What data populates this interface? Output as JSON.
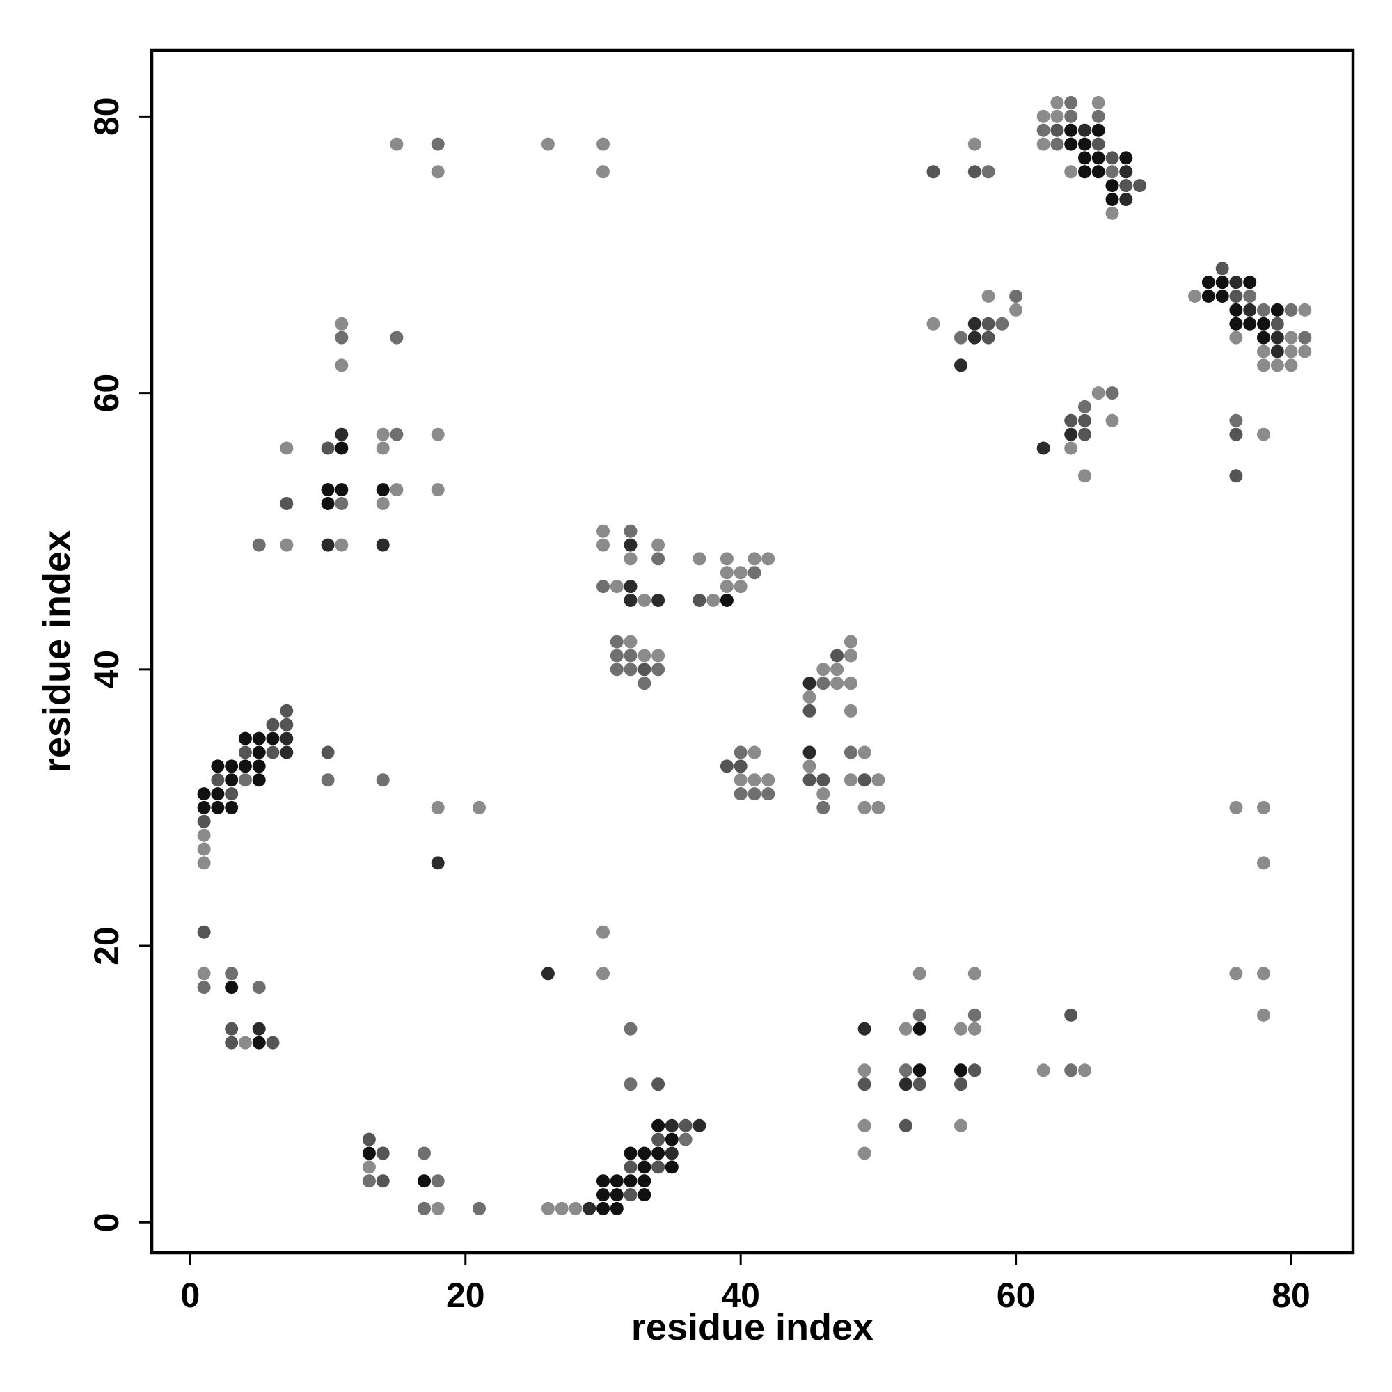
{
  "chart_data": {
    "type": "scatter",
    "xlabel": "residue index",
    "ylabel": "residue index",
    "xlim": [
      -2.8,
      84.5
    ],
    "ylim": [
      -2.2,
      84.8
    ],
    "xticks": [
      0,
      20,
      40,
      60,
      80
    ],
    "yticks": [
      0,
      20,
      40,
      60,
      80
    ],
    "grid": false,
    "legend": "none",
    "colors": {
      "l1": "#111111",
      "l2": "#2b2b2b",
      "l3": "#555555",
      "l4": "#6f6f6f",
      "l5": "#8b8b8b"
    },
    "points": [
      [
        1,
        31,
        "l1"
      ],
      [
        1,
        30,
        "l1"
      ],
      [
        1,
        29,
        "l3"
      ],
      [
        1,
        28,
        "l5"
      ],
      [
        1,
        27,
        "l5"
      ],
      [
        1,
        26,
        "l5"
      ],
      [
        2,
        33,
        "l1"
      ],
      [
        2,
        32,
        "l3"
      ],
      [
        2,
        31,
        "l1"
      ],
      [
        2,
        30,
        "l1"
      ],
      [
        3,
        33,
        "l1"
      ],
      [
        3,
        32,
        "l1"
      ],
      [
        3,
        31,
        "l3"
      ],
      [
        3,
        30,
        "l1"
      ],
      [
        4,
        35,
        "l1"
      ],
      [
        4,
        34,
        "l3"
      ],
      [
        4,
        33,
        "l1"
      ],
      [
        4,
        32,
        "l4"
      ],
      [
        5,
        35,
        "l1"
      ],
      [
        5,
        34,
        "l1"
      ],
      [
        5,
        33,
        "l1"
      ],
      [
        5,
        32,
        "l1"
      ],
      [
        6,
        36,
        "l3"
      ],
      [
        6,
        35,
        "l1"
      ],
      [
        6,
        34,
        "l3"
      ],
      [
        7,
        37,
        "l3"
      ],
      [
        7,
        36,
        "l3"
      ],
      [
        7,
        35,
        "l2"
      ],
      [
        7,
        34,
        "l2"
      ],
      [
        10,
        34,
        "l3"
      ],
      [
        10,
        32,
        "l4"
      ],
      [
        14,
        32,
        "l4"
      ],
      [
        18,
        30,
        "l5"
      ],
      [
        21,
        30,
        "l5"
      ],
      [
        18,
        26,
        "l2"
      ],
      [
        1,
        21,
        "l3"
      ],
      [
        1,
        18,
        "l5"
      ],
      [
        1,
        17,
        "l4"
      ],
      [
        3,
        18,
        "l4"
      ],
      [
        3,
        17,
        "l1"
      ],
      [
        5,
        17,
        "l4"
      ],
      [
        3,
        14,
        "l3"
      ],
      [
        3,
        13,
        "l3"
      ],
      [
        4,
        13,
        "l5"
      ],
      [
        5,
        14,
        "l2"
      ],
      [
        5,
        13,
        "l1"
      ],
      [
        6,
        13,
        "l3"
      ],
      [
        13,
        6,
        "l3"
      ],
      [
        13,
        5,
        "l1"
      ],
      [
        13,
        4,
        "l5"
      ],
      [
        13,
        3,
        "l4"
      ],
      [
        14,
        5,
        "l3"
      ],
      [
        14,
        3,
        "l3"
      ],
      [
        17,
        5,
        "l4"
      ],
      [
        17,
        3,
        "l1"
      ],
      [
        17,
        1,
        "l4"
      ],
      [
        18,
        3,
        "l4"
      ],
      [
        18,
        1,
        "l5"
      ],
      [
        21,
        1,
        "l4"
      ],
      [
        26,
        1,
        "l5"
      ],
      [
        27,
        1,
        "l5"
      ],
      [
        28,
        1,
        "l5"
      ],
      [
        29,
        1,
        "l2"
      ],
      [
        30,
        3,
        "l1"
      ],
      [
        30,
        2,
        "l1"
      ],
      [
        30,
        1,
        "l1"
      ],
      [
        31,
        3,
        "l1"
      ],
      [
        31,
        2,
        "l1"
      ],
      [
        31,
        1,
        "l1"
      ],
      [
        32,
        5,
        "l1"
      ],
      [
        32,
        4,
        "l3"
      ],
      [
        32,
        3,
        "l1"
      ],
      [
        32,
        2,
        "l3"
      ],
      [
        33,
        5,
        "l1"
      ],
      [
        33,
        4,
        "l1"
      ],
      [
        33,
        3,
        "l1"
      ],
      [
        33,
        2,
        "l1"
      ],
      [
        34,
        7,
        "l1"
      ],
      [
        34,
        6,
        "l3"
      ],
      [
        34,
        5,
        "l1"
      ],
      [
        34,
        4,
        "l3"
      ],
      [
        35,
        7,
        "l2"
      ],
      [
        35,
        6,
        "l1"
      ],
      [
        35,
        5,
        "l2"
      ],
      [
        35,
        4,
        "l1"
      ],
      [
        36,
        7,
        "l3"
      ],
      [
        36,
        6,
        "l4"
      ],
      [
        37,
        7,
        "l2"
      ],
      [
        32,
        14,
        "l4"
      ],
      [
        32,
        10,
        "l4"
      ],
      [
        34,
        10,
        "l3"
      ],
      [
        26,
        18,
        "l2"
      ],
      [
        30,
        21,
        "l5"
      ],
      [
        30,
        18,
        "l5"
      ],
      [
        15,
        78,
        "l5"
      ],
      [
        18,
        78,
        "l4"
      ],
      [
        18,
        76,
        "l5"
      ],
      [
        26,
        78,
        "l5"
      ],
      [
        30,
        78,
        "l5"
      ],
      [
        30,
        76,
        "l5"
      ],
      [
        11,
        65,
        "l5"
      ],
      [
        11,
        64,
        "l4"
      ],
      [
        11,
        62,
        "l5"
      ],
      [
        15,
        64,
        "l4"
      ],
      [
        7,
        56,
        "l5"
      ],
      [
        7,
        52,
        "l3"
      ],
      [
        7,
        49,
        "l5"
      ],
      [
        5,
        49,
        "l4"
      ],
      [
        10,
        56,
        "l3"
      ],
      [
        10,
        53,
        "l1"
      ],
      [
        10,
        52,
        "l1"
      ],
      [
        10,
        49,
        "l2"
      ],
      [
        11,
        57,
        "l2"
      ],
      [
        11,
        56,
        "l1"
      ],
      [
        11,
        53,
        "l1"
      ],
      [
        11,
        52,
        "l4"
      ],
      [
        11,
        49,
        "l5"
      ],
      [
        14,
        57,
        "l5"
      ],
      [
        14,
        56,
        "l5"
      ],
      [
        14,
        53,
        "l1"
      ],
      [
        14,
        52,
        "l5"
      ],
      [
        14,
        49,
        "l2"
      ],
      [
        15,
        57,
        "l4"
      ],
      [
        15,
        53,
        "l5"
      ],
      [
        18,
        57,
        "l5"
      ],
      [
        18,
        53,
        "l5"
      ],
      [
        30,
        50,
        "l5"
      ],
      [
        30,
        49,
        "l5"
      ],
      [
        30,
        46,
        "l4"
      ],
      [
        31,
        46,
        "l5"
      ],
      [
        32,
        50,
        "l4"
      ],
      [
        32,
        49,
        "l2"
      ],
      [
        32,
        48,
        "l5"
      ],
      [
        32,
        46,
        "l2"
      ],
      [
        32,
        45,
        "l2"
      ],
      [
        33,
        45,
        "l5"
      ],
      [
        34,
        49,
        "l5"
      ],
      [
        34,
        48,
        "l4"
      ],
      [
        34,
        45,
        "l2"
      ],
      [
        31,
        42,
        "l4"
      ],
      [
        31,
        41,
        "l4"
      ],
      [
        31,
        40,
        "l4"
      ],
      [
        32,
        42,
        "l5"
      ],
      [
        32,
        41,
        "l4"
      ],
      [
        32,
        40,
        "l4"
      ],
      [
        33,
        41,
        "l5"
      ],
      [
        33,
        40,
        "l3"
      ],
      [
        33,
        39,
        "l4"
      ],
      [
        34,
        41,
        "l5"
      ],
      [
        34,
        40,
        "l4"
      ],
      [
        37,
        48,
        "l5"
      ],
      [
        37,
        45,
        "l3"
      ],
      [
        38,
        45,
        "l5"
      ],
      [
        39,
        48,
        "l5"
      ],
      [
        39,
        47,
        "l5"
      ],
      [
        39,
        46,
        "l5"
      ],
      [
        39,
        45,
        "l1"
      ],
      [
        40,
        47,
        "l5"
      ],
      [
        40,
        46,
        "l5"
      ],
      [
        41,
        48,
        "l5"
      ],
      [
        41,
        47,
        "l4"
      ],
      [
        42,
        48,
        "l5"
      ],
      [
        39,
        33,
        "l3"
      ],
      [
        40,
        34,
        "l4"
      ],
      [
        40,
        33,
        "l3"
      ],
      [
        40,
        32,
        "l5"
      ],
      [
        40,
        31,
        "l4"
      ],
      [
        41,
        34,
        "l5"
      ],
      [
        41,
        32,
        "l5"
      ],
      [
        41,
        31,
        "l4"
      ],
      [
        42,
        32,
        "l5"
      ],
      [
        42,
        31,
        "l4"
      ],
      [
        45,
        39,
        "l2"
      ],
      [
        45,
        38,
        "l5"
      ],
      [
        45,
        37,
        "l3"
      ],
      [
        45,
        34,
        "l2"
      ],
      [
        45,
        33,
        "l5"
      ],
      [
        45,
        32,
        "l3"
      ],
      [
        46,
        40,
        "l5"
      ],
      [
        46,
        39,
        "l4"
      ],
      [
        46,
        32,
        "l3"
      ],
      [
        46,
        31,
        "l5"
      ],
      [
        46,
        30,
        "l4"
      ],
      [
        47,
        41,
        "l3"
      ],
      [
        47,
        40,
        "l5"
      ],
      [
        47,
        39,
        "l5"
      ],
      [
        48,
        42,
        "l5"
      ],
      [
        48,
        41,
        "l5"
      ],
      [
        48,
        39,
        "l5"
      ],
      [
        48,
        37,
        "l5"
      ],
      [
        48,
        34,
        "l4"
      ],
      [
        48,
        32,
        "l5"
      ],
      [
        49,
        34,
        "l5"
      ],
      [
        49,
        32,
        "l3"
      ],
      [
        49,
        30,
        "l5"
      ],
      [
        50,
        32,
        "l5"
      ],
      [
        50,
        30,
        "l5"
      ],
      [
        49,
        14,
        "l2"
      ],
      [
        49,
        11,
        "l5"
      ],
      [
        49,
        10,
        "l3"
      ],
      [
        49,
        7,
        "l5"
      ],
      [
        49,
        5,
        "l5"
      ],
      [
        52,
        14,
        "l5"
      ],
      [
        52,
        11,
        "l4"
      ],
      [
        52,
        10,
        "l2"
      ],
      [
        52,
        7,
        "l3"
      ],
      [
        53,
        18,
        "l5"
      ],
      [
        53,
        15,
        "l4"
      ],
      [
        53,
        14,
        "l1"
      ],
      [
        53,
        11,
        "l1"
      ],
      [
        53,
        10,
        "l3"
      ],
      [
        56,
        14,
        "l5"
      ],
      [
        56,
        11,
        "l1"
      ],
      [
        56,
        10,
        "l3"
      ],
      [
        56,
        7,
        "l5"
      ],
      [
        57,
        18,
        "l5"
      ],
      [
        57,
        15,
        "l4"
      ],
      [
        57,
        14,
        "l5"
      ],
      [
        57,
        11,
        "l3"
      ],
      [
        62,
        11,
        "l5"
      ],
      [
        64,
        15,
        "l3"
      ],
      [
        64,
        11,
        "l4"
      ],
      [
        65,
        11,
        "l5"
      ],
      [
        54,
        76,
        "l3"
      ],
      [
        57,
        78,
        "l5"
      ],
      [
        57,
        76,
        "l3"
      ],
      [
        58,
        76,
        "l4"
      ],
      [
        62,
        80,
        "l5"
      ],
      [
        62,
        79,
        "l4"
      ],
      [
        62,
        78,
        "l5"
      ],
      [
        63,
        81,
        "l5"
      ],
      [
        63,
        80,
        "l5"
      ],
      [
        63,
        79,
        "l3"
      ],
      [
        63,
        78,
        "l4"
      ],
      [
        64,
        81,
        "l4"
      ],
      [
        64,
        80,
        "l4"
      ],
      [
        64,
        79,
        "l1"
      ],
      [
        64,
        78,
        "l1"
      ],
      [
        64,
        76,
        "l5"
      ],
      [
        65,
        79,
        "l2"
      ],
      [
        65,
        78,
        "l1"
      ],
      [
        65,
        77,
        "l1"
      ],
      [
        65,
        76,
        "l1"
      ],
      [
        66,
        81,
        "l5"
      ],
      [
        66,
        80,
        "l4"
      ],
      [
        66,
        79,
        "l1"
      ],
      [
        66,
        78,
        "l3"
      ],
      [
        66,
        77,
        "l1"
      ],
      [
        66,
        76,
        "l1"
      ],
      [
        67,
        77,
        "l3"
      ],
      [
        67,
        76,
        "l4"
      ],
      [
        67,
        75,
        "l1"
      ],
      [
        67,
        74,
        "l1"
      ],
      [
        67,
        73,
        "l5"
      ],
      [
        68,
        77,
        "l1"
      ],
      [
        68,
        76,
        "l2"
      ],
      [
        68,
        75,
        "l3"
      ],
      [
        68,
        74,
        "l2"
      ],
      [
        69,
        75,
        "l3"
      ],
      [
        54,
        65,
        "l5"
      ],
      [
        56,
        64,
        "l4"
      ],
      [
        56,
        62,
        "l2"
      ],
      [
        57,
        65,
        "l2"
      ],
      [
        57,
        64,
        "l2"
      ],
      [
        58,
        67,
        "l5"
      ],
      [
        58,
        65,
        "l3"
      ],
      [
        58,
        64,
        "l3"
      ],
      [
        59,
        65,
        "l4"
      ],
      [
        60,
        67,
        "l4"
      ],
      [
        60,
        66,
        "l5"
      ],
      [
        62,
        56,
        "l2"
      ],
      [
        64,
        58,
        "l3"
      ],
      [
        64,
        57,
        "l2"
      ],
      [
        64,
        56,
        "l5"
      ],
      [
        65,
        59,
        "l4"
      ],
      [
        65,
        58,
        "l3"
      ],
      [
        65,
        57,
        "l3"
      ],
      [
        65,
        54,
        "l5"
      ],
      [
        66,
        60,
        "l5"
      ],
      [
        67,
        60,
        "l4"
      ],
      [
        67,
        58,
        "l5"
      ],
      [
        73,
        67,
        "l5"
      ],
      [
        74,
        68,
        "l1"
      ],
      [
        74,
        67,
        "l1"
      ],
      [
        75,
        69,
        "l3"
      ],
      [
        75,
        68,
        "l1"
      ],
      [
        75,
        67,
        "l1"
      ],
      [
        76,
        68,
        "l2"
      ],
      [
        76,
        67,
        "l3"
      ],
      [
        76,
        66,
        "l1"
      ],
      [
        76,
        65,
        "l1"
      ],
      [
        76,
        64,
        "l5"
      ],
      [
        77,
        68,
        "l1"
      ],
      [
        77,
        67,
        "l4"
      ],
      [
        77,
        66,
        "l2"
      ],
      [
        77,
        65,
        "l1"
      ],
      [
        78,
        66,
        "l4"
      ],
      [
        78,
        65,
        "l1"
      ],
      [
        78,
        64,
        "l1"
      ],
      [
        78,
        63,
        "l5"
      ],
      [
        78,
        62,
        "l5"
      ],
      [
        79,
        66,
        "l1"
      ],
      [
        79,
        65,
        "l3"
      ],
      [
        79,
        64,
        "l2"
      ],
      [
        79,
        63,
        "l2"
      ],
      [
        79,
        62,
        "l5"
      ],
      [
        80,
        66,
        "l4"
      ],
      [
        80,
        64,
        "l5"
      ],
      [
        80,
        63,
        "l5"
      ],
      [
        80,
        62,
        "l5"
      ],
      [
        81,
        66,
        "l5"
      ],
      [
        81,
        64,
        "l4"
      ],
      [
        81,
        63,
        "l5"
      ],
      [
        76,
        58,
        "l4"
      ],
      [
        76,
        57,
        "l3"
      ],
      [
        76,
        54,
        "l3"
      ],
      [
        78,
        57,
        "l5"
      ],
      [
        76,
        30,
        "l5"
      ],
      [
        78,
        30,
        "l5"
      ],
      [
        78,
        26,
        "l5"
      ],
      [
        76,
        18,
        "l5"
      ],
      [
        78,
        18,
        "l5"
      ],
      [
        78,
        15,
        "l5"
      ]
    ]
  }
}
